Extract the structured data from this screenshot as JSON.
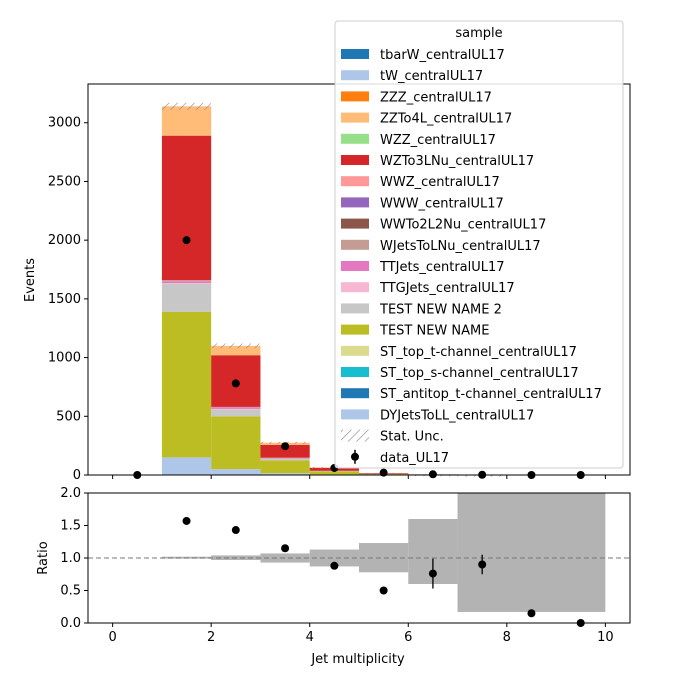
{
  "chart_data": [
    {
      "type": "bar",
      "stacked": true,
      "ylabel": "Events",
      "ylim": [
        0,
        3330
      ],
      "xlim": [
        -0.5,
        10.5
      ],
      "yticks": [
        "0",
        "500",
        "1000",
        "1500",
        "2000",
        "2500",
        "3000"
      ],
      "xticks": [
        "0",
        "2",
        "4",
        "6",
        "8",
        "10"
      ],
      "x_edges": [
        0,
        1,
        2,
        3,
        4,
        5,
        6,
        7,
        8,
        9,
        10
      ],
      "legend": {
        "title": "sample",
        "placement": "top-right"
      },
      "series": [
        {
          "name": "DYJetsToLL_centralUL17",
          "color": "#aec7e8",
          "values": [
            0,
            150,
            50,
            15,
            5,
            2,
            1,
            0,
            0,
            0
          ]
        },
        {
          "name": "ST_antitop_t-channel_centralUL17",
          "color": "#1f77b4",
          "values": [
            0,
            0,
            0,
            0,
            0,
            0,
            0,
            0,
            0,
            0
          ]
        },
        {
          "name": "ST_top_s-channel_centralUL17",
          "color": "#17becf",
          "values": [
            0,
            0,
            0,
            0,
            0,
            0,
            0,
            0,
            0,
            0
          ]
        },
        {
          "name": "ST_top_t-channel_centralUL17",
          "color": "#dbdb8d",
          "values": [
            0,
            0,
            0,
            0,
            0,
            0,
            0,
            0,
            0,
            0
          ]
        },
        {
          "name": "TEST NEW NAME",
          "color": "#bcbd22",
          "values": [
            0,
            1240,
            450,
            110,
            25,
            6,
            2,
            0,
            0,
            0
          ]
        },
        {
          "name": "TEST NEW NAME 2",
          "color": "#c7c7c7",
          "values": [
            0,
            240,
            60,
            15,
            4,
            1,
            0,
            0,
            0,
            0
          ]
        },
        {
          "name": "TTGJets_centralUL17",
          "color": "#f7b6d2",
          "values": [
            0,
            5,
            3,
            1,
            0,
            0,
            0,
            0,
            0,
            0
          ]
        },
        {
          "name": "TTJets_centralUL17",
          "color": "#e377c2",
          "values": [
            0,
            15,
            12,
            4,
            2,
            1,
            0,
            0,
            0,
            0
          ]
        },
        {
          "name": "WJetsToLNu_centralUL17",
          "color": "#c49c94",
          "values": [
            0,
            5,
            2,
            1,
            0,
            0,
            0,
            0,
            0,
            0
          ]
        },
        {
          "name": "WWTo2L2Nu_centralUL17",
          "color": "#8c564b",
          "values": [
            0,
            3,
            1,
            0,
            0,
            0,
            0,
            0,
            0,
            0
          ]
        },
        {
          "name": "WWW_centralUL17",
          "color": "#9467bd",
          "values": [
            0,
            0,
            0,
            0,
            0,
            0,
            0,
            0,
            0,
            0
          ]
        },
        {
          "name": "WWZ_centralUL17",
          "color": "#ff9896",
          "values": [
            0,
            2,
            2,
            1,
            0,
            0,
            0,
            0,
            0,
            0
          ]
        },
        {
          "name": "WZTo3LNu_centralUL17",
          "color": "#d62728",
          "values": [
            0,
            1230,
            440,
            110,
            25,
            6,
            2,
            1,
            0,
            0
          ]
        },
        {
          "name": "WZZ_centralUL17",
          "color": "#98df8a",
          "values": [
            0,
            0,
            0,
            0,
            0,
            0,
            0,
            0,
            0,
            0
          ]
        },
        {
          "name": "ZZTo4L_centralUL17",
          "color": "#ffbb78",
          "values": [
            0,
            250,
            80,
            18,
            4,
            1,
            0,
            0,
            0,
            0
          ]
        },
        {
          "name": "ZZZ_centralUL17",
          "color": "#ff7f0e",
          "values": [
            0,
            0,
            0,
            0,
            0,
            0,
            0,
            0,
            0,
            0
          ]
        },
        {
          "name": "tW_centralUL17",
          "color": "#aec7e8",
          "values": [
            0,
            0,
            0,
            0,
            0,
            0,
            0,
            0,
            0,
            0
          ]
        },
        {
          "name": "tbarW_centralUL17",
          "color": "#1f77b4",
          "values": [
            0,
            0,
            0,
            0,
            0,
            0,
            0,
            0,
            0,
            0
          ]
        }
      ],
      "stat_unc": {
        "name": "Stat. Unc.",
        "values": [
          0,
          30,
          20,
          8,
          5,
          2,
          1,
          1,
          0,
          0
        ]
      },
      "data": {
        "name": "data_UL17",
        "x": [
          0.5,
          1.5,
          2.5,
          3.5,
          4.5,
          5.5,
          6.5,
          7.5,
          8.5,
          9.5
        ],
        "y": [
          0,
          2000,
          780,
          245,
          60,
          20,
          6,
          2,
          0,
          0
        ]
      }
    },
    {
      "type": "scatter",
      "xlabel": "Jet multiplicity",
      "ylabel": "Ratio",
      "ylim": [
        0,
        2
      ],
      "xlim": [
        -0.5,
        10.5
      ],
      "yticks": [
        "0.0",
        "0.5",
        "1.0",
        "1.5",
        "2.0"
      ],
      "xticks": [
        "0",
        "2",
        "4",
        "6",
        "8",
        "10"
      ],
      "reference_line": 1.0,
      "unc_band": [
        {
          "x0": 1,
          "x1": 2,
          "lo": 0.99,
          "hi": 1.02
        },
        {
          "x0": 2,
          "x1": 3,
          "lo": 0.97,
          "hi": 1.04
        },
        {
          "x0": 3,
          "x1": 4,
          "lo": 0.93,
          "hi": 1.07
        },
        {
          "x0": 4,
          "x1": 5,
          "lo": 0.87,
          "hi": 1.13
        },
        {
          "x0": 5,
          "x1": 6,
          "lo": 0.78,
          "hi": 1.23
        },
        {
          "x0": 6,
          "x1": 7,
          "lo": 0.6,
          "hi": 1.6
        },
        {
          "x0": 7,
          "x1": 10,
          "lo": 0.17,
          "hi": 2.0
        }
      ],
      "points": {
        "x": [
          1.5,
          2.5,
          3.5,
          4.5,
          5.5,
          6.5,
          7.5,
          8.5,
          9.5
        ],
        "y": [
          1.57,
          1.43,
          1.15,
          0.88,
          0.5,
          0.76,
          0.9,
          0.15,
          0.0
        ],
        "yerr": [
          0.02,
          0.03,
          0.04,
          0.04,
          0.03,
          0.23,
          0.15,
          0.0,
          0.0
        ]
      }
    }
  ]
}
